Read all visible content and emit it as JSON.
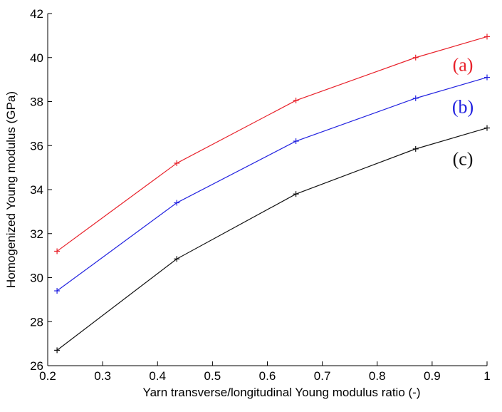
{
  "chart_data": {
    "type": "line",
    "title": "",
    "xlabel": "Yarn transverse/longitudinal Young modulus ratio (-)",
    "ylabel": "Homogenized Young modulus (GPa)",
    "xlim": [
      0.2,
      1.0
    ],
    "ylim": [
      26,
      42
    ],
    "x_ticks": [
      0.2,
      0.3,
      0.4,
      0.5,
      0.6,
      0.7,
      0.8,
      0.9,
      1.0
    ],
    "x_tick_labels": [
      "0.2",
      "0.3",
      "0.4",
      "0.5",
      "0.6",
      "0.7",
      "0.8",
      "0.9",
      "1"
    ],
    "y_ticks": [
      26,
      28,
      30,
      32,
      34,
      36,
      38,
      40,
      42
    ],
    "y_tick_labels": [
      "26",
      "28",
      "30",
      "32",
      "34",
      "36",
      "38",
      "40",
      "42"
    ],
    "grid": false,
    "marker": "+",
    "x": [
      0.217,
      0.435,
      0.652,
      0.87,
      1.0
    ],
    "series": [
      {
        "name": "(a)",
        "color": "#e8212a",
        "values": [
          31.2,
          35.2,
          38.05,
          40.0,
          40.95
        ]
      },
      {
        "name": "(b)",
        "color": "#2222e0",
        "values": [
          29.4,
          33.4,
          36.2,
          38.15,
          39.1
        ]
      },
      {
        "name": "(c)",
        "color": "#111111",
        "values": [
          26.7,
          30.85,
          33.8,
          35.85,
          36.8
        ]
      }
    ]
  }
}
